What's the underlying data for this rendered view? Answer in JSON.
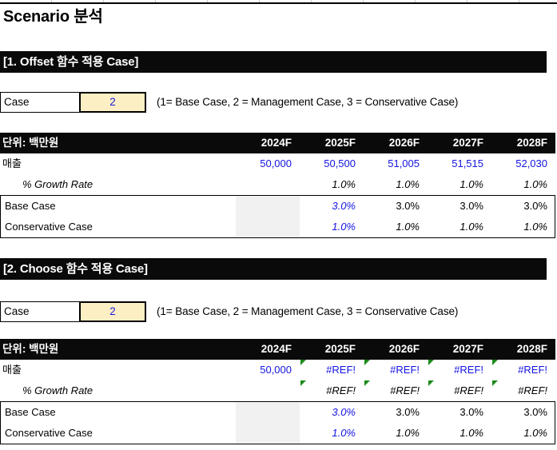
{
  "title": "Scenario 분석",
  "unit_label": "단위: 백만원",
  "years": [
    "2024F",
    "2025F",
    "2026F",
    "2027F",
    "2028F"
  ],
  "row_labels": {
    "revenue": "매출",
    "growth": "% Growth Rate",
    "base": "Base Case",
    "conservative": "Conservative Case"
  },
  "case_legend": "(1= Base Case, 2 = Management Case, 3 = Conservative Case)",
  "section1": {
    "header": "[1. Offset 함수 적용 Case]",
    "case_label": "Case",
    "case_value": "2",
    "revenue": [
      "50,000",
      "50,500",
      "51,005",
      "51,515",
      "52,030"
    ],
    "growth": [
      "",
      "1.0%",
      "1.0%",
      "1.0%",
      "1.0%"
    ],
    "base": [
      "",
      "3.0%",
      "3.0%",
      "3.0%",
      "3.0%"
    ],
    "conservative": [
      "",
      "1.0%",
      "1.0%",
      "1.0%",
      "1.0%"
    ]
  },
  "section2": {
    "header": "[2. Choose 함수 적용 Case]",
    "case_label": "Case",
    "case_value": "2",
    "revenue": [
      "50,000",
      "#REF!",
      "#REF!",
      "#REF!",
      "#REF!"
    ],
    "growth": [
      "",
      "#REF!",
      "#REF!",
      "#REF!",
      "#REF!"
    ],
    "base": [
      "",
      "3.0%",
      "3.0%",
      "3.0%",
      "3.0%"
    ],
    "conservative": [
      "",
      "1.0%",
      "1.0%",
      "1.0%",
      "1.0%"
    ]
  },
  "colors": {
    "value_blue": "#1414e0",
    "input_fill": "#fcefc3",
    "bar_black": "#0a0a0a",
    "shaded_cell": "#f1f1f1",
    "error_indicator_green": "#1b8a1b"
  }
}
